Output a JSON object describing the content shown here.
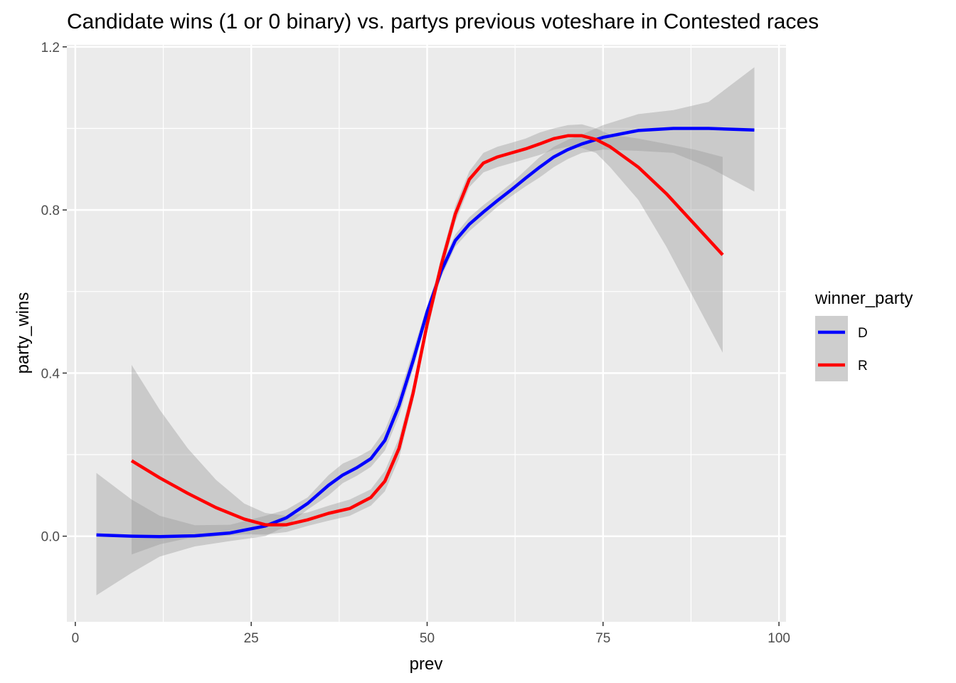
{
  "chart_data": {
    "type": "line",
    "title": "Candidate wins (1 or 0 binary) vs. partys previous voteshare in Contested races",
    "xlabel": "prev",
    "ylabel": "party_wins",
    "xlim": [
      -1.2,
      101
    ],
    "ylim": [
      -0.21,
      1.205
    ],
    "x_ticks": [
      0,
      25,
      50,
      75,
      100
    ],
    "x_tick_labels": [
      "0",
      "25",
      "50",
      "75",
      "100"
    ],
    "y_ticks": [
      0.0,
      0.4,
      0.8,
      1.2
    ],
    "y_tick_labels": [
      "0.0",
      "0.4",
      "0.8",
      "1.2"
    ],
    "grid": true,
    "legend": {
      "title": "winner_party",
      "placement": "right"
    },
    "series": [
      {
        "name": "D",
        "color": "#0000ff",
        "x": [
          3,
          8,
          12,
          17,
          22,
          27,
          30,
          33,
          36,
          38,
          40,
          42,
          44,
          46,
          48,
          50,
          52,
          54,
          56,
          58,
          60,
          62,
          64,
          66,
          68,
          70,
          72,
          75,
          80,
          85,
          90,
          96.5
        ],
        "y": [
          0.003,
          0.0,
          -0.001,
          0.001,
          0.008,
          0.025,
          0.045,
          0.08,
          0.125,
          0.15,
          0.168,
          0.19,
          0.235,
          0.32,
          0.43,
          0.55,
          0.65,
          0.725,
          0.765,
          0.795,
          0.823,
          0.85,
          0.878,
          0.905,
          0.93,
          0.948,
          0.962,
          0.978,
          0.995,
          1.0,
          1.0,
          0.996
        ],
        "lower": [
          -0.145,
          -0.09,
          -0.05,
          -0.025,
          -0.012,
          0.0,
          0.025,
          0.065,
          0.1,
          0.13,
          0.148,
          0.17,
          0.21,
          0.295,
          0.41,
          0.535,
          0.635,
          0.71,
          0.748,
          0.778,
          0.808,
          0.834,
          0.858,
          0.88,
          0.905,
          0.925,
          0.94,
          0.948,
          0.945,
          0.94,
          0.905,
          0.845
        ],
        "upper": [
          0.155,
          0.09,
          0.05,
          0.027,
          0.028,
          0.05,
          0.065,
          0.095,
          0.15,
          0.178,
          0.193,
          0.212,
          0.26,
          0.345,
          0.455,
          0.565,
          0.665,
          0.74,
          0.782,
          0.812,
          0.838,
          0.866,
          0.898,
          0.93,
          0.955,
          0.972,
          0.985,
          1.008,
          1.035,
          1.045,
          1.065,
          1.15
        ]
      },
      {
        "name": "R",
        "color": "#ff0000",
        "x": [
          8,
          12,
          16,
          20,
          24,
          27,
          30,
          33,
          36,
          39,
          42,
          44,
          46,
          48,
          50,
          52,
          54,
          56,
          58,
          60,
          62,
          64,
          66,
          68,
          70,
          72,
          74,
          76,
          80,
          84,
          88,
          92
        ],
        "y": [
          0.185,
          0.143,
          0.105,
          0.07,
          0.042,
          0.028,
          0.028,
          0.04,
          0.056,
          0.068,
          0.095,
          0.135,
          0.215,
          0.35,
          0.52,
          0.665,
          0.79,
          0.875,
          0.915,
          0.93,
          0.94,
          0.95,
          0.962,
          0.975,
          0.982,
          0.982,
          0.973,
          0.955,
          0.905,
          0.84,
          0.765,
          0.69
        ],
        "lower": [
          -0.045,
          -0.02,
          -0.005,
          -0.002,
          0.005,
          0.004,
          0.01,
          0.025,
          0.038,
          0.05,
          0.075,
          0.11,
          0.19,
          0.33,
          0.5,
          0.645,
          0.77,
          0.856,
          0.892,
          0.905,
          0.915,
          0.925,
          0.935,
          0.948,
          0.955,
          0.952,
          0.94,
          0.905,
          0.825,
          0.71,
          0.58,
          0.45
        ],
        "upper": [
          0.42,
          0.31,
          0.215,
          0.138,
          0.08,
          0.057,
          0.05,
          0.058,
          0.075,
          0.09,
          0.115,
          0.16,
          0.24,
          0.37,
          0.54,
          0.685,
          0.81,
          0.895,
          0.94,
          0.955,
          0.965,
          0.975,
          0.99,
          1.0,
          1.008,
          1.01,
          1.0,
          0.985,
          0.975,
          0.962,
          0.948,
          0.93
        ]
      }
    ]
  }
}
